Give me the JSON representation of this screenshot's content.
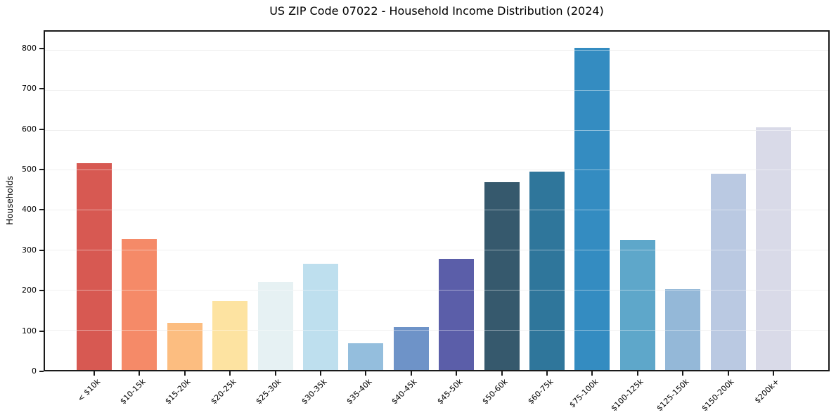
{
  "chart_data": {
    "type": "bar",
    "title": "US ZIP Code 07022 - Household Income Distribution (2024)",
    "xlabel": "",
    "ylabel": "Households",
    "categories": [
      "< $10k",
      "$10-15k",
      "$15-20k",
      "$20-25k",
      "$25-30k",
      "$30-35k",
      "$35-40k",
      "$40-45k",
      "$45-50k",
      "$50-60k",
      "$60-75k",
      "$75-100k",
      "$100-125k",
      "$125-150k",
      "$150-200k",
      "$200k+"
    ],
    "values": [
      517,
      327,
      117,
      173,
      220,
      265,
      66,
      108,
      278,
      469,
      495,
      805,
      325,
      202,
      490,
      606
    ],
    "bar_colors": [
      "#d75952",
      "#f58a68",
      "#fcbd80",
      "#fde3a1",
      "#e6f1f3",
      "#bedfee",
      "#94bedd",
      "#6e93c8",
      "#5b5ea9",
      "#36596d",
      "#2f769b",
      "#348cc1",
      "#5ea7ca",
      "#94b8d8",
      "#bac9e2",
      "#d9dae8"
    ],
    "ylim": [
      0,
      845
    ],
    "yticks": [
      0,
      100,
      200,
      300,
      400,
      500,
      600,
      700,
      800
    ],
    "grid": "horizontal",
    "legend": "none",
    "style": {
      "background": "#ffffff",
      "grid_color": "#e4e4e4",
      "spine_color": "#1a1a1a",
      "text_color": "#000000"
    }
  }
}
